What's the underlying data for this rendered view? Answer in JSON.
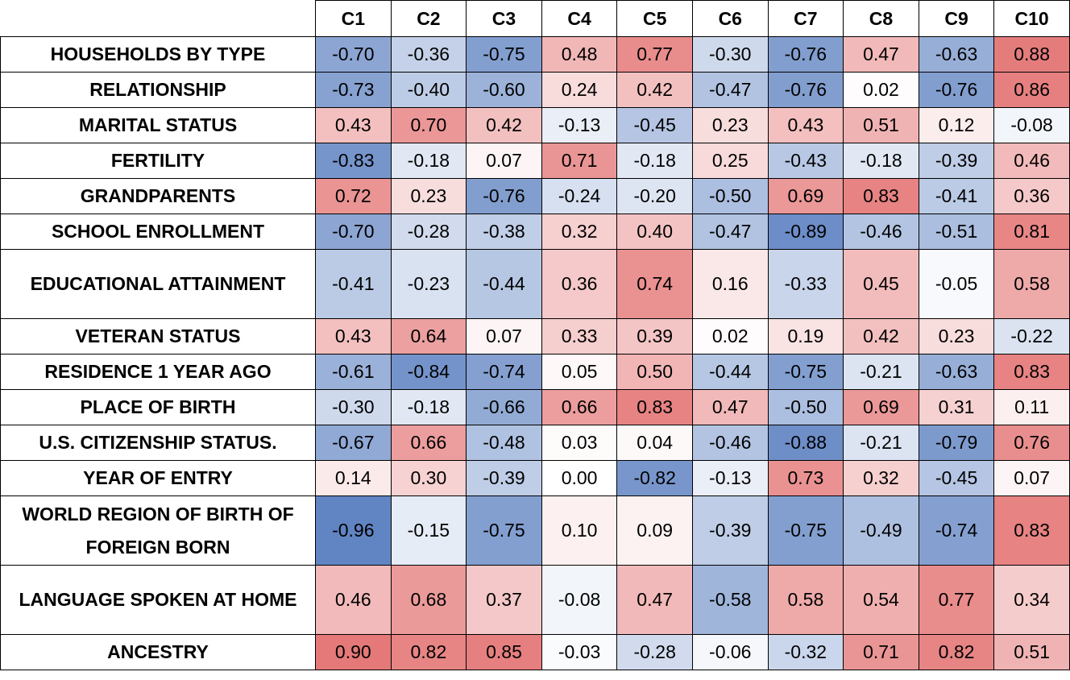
{
  "chart_data": {
    "type": "heatmap",
    "columns": [
      "C1",
      "C2",
      "C3",
      "C4",
      "C5",
      "C6",
      "C7",
      "C8",
      "C9",
      "C10"
    ],
    "rows": [
      "HOUSEHOLDS BY TYPE",
      "RELATIONSHIP",
      "MARITAL STATUS",
      "FERTILITY",
      "GRANDPARENTS",
      "SCHOOL ENROLLMENT",
      "EDUCATIONAL ATTAINMENT",
      "VETERAN STATUS",
      "RESIDENCE 1 YEAR AGO",
      "PLACE OF BIRTH",
      "U.S. CITIZENSHIP STATUS.",
      "YEAR OF ENTRY",
      "WORLD REGION OF BIRTH OF FOREIGN BORN",
      "LANGUAGE SPOKEN AT HOME",
      "ANCESTRY"
    ],
    "values": [
      [
        "-0.70",
        "-0.36",
        "-0.75",
        "0.48",
        "0.77",
        "-0.30",
        "-0.76",
        "0.47",
        "-0.63",
        "0.88"
      ],
      [
        "-0.73",
        "-0.40",
        "-0.60",
        "0.24",
        "0.42",
        "-0.47",
        "-0.76",
        "0.02",
        "-0.76",
        "0.86"
      ],
      [
        "0.43",
        "0.70",
        "0.42",
        "-0.13",
        "-0.45",
        "0.23",
        "0.43",
        "0.51",
        "0.12",
        "-0.08"
      ],
      [
        "-0.83",
        "-0.18",
        "0.07",
        "0.71",
        "-0.18",
        "0.25",
        "-0.43",
        "-0.18",
        "-0.39",
        "0.46"
      ],
      [
        "0.72",
        "0.23",
        "-0.76",
        "-0.24",
        "-0.20",
        "-0.50",
        "0.69",
        "0.83",
        "-0.41",
        "0.36"
      ],
      [
        "-0.70",
        "-0.28",
        "-0.38",
        "0.32",
        "0.40",
        "-0.47",
        "-0.89",
        "-0.46",
        "-0.51",
        "0.81"
      ],
      [
        "-0.41",
        "-0.23",
        "-0.44",
        "0.36",
        "0.74",
        "0.16",
        "-0.33",
        "0.45",
        "-0.05",
        "0.58"
      ],
      [
        "0.43",
        "0.64",
        "0.07",
        "0.33",
        "0.39",
        "0.02",
        "0.19",
        "0.42",
        "0.23",
        "-0.22"
      ],
      [
        "-0.61",
        "-0.84",
        "-0.74",
        "0.05",
        "0.50",
        "-0.44",
        "-0.75",
        "-0.21",
        "-0.63",
        "0.83"
      ],
      [
        "-0.30",
        "-0.18",
        "-0.66",
        "0.66",
        "0.83",
        "0.47",
        "-0.50",
        "0.69",
        "0.31",
        "0.11"
      ],
      [
        "-0.67",
        "0.66",
        "-0.48",
        "0.03",
        "0.04",
        "-0.46",
        "-0.88",
        "-0.21",
        "-0.79",
        "0.76"
      ],
      [
        "0.14",
        "0.30",
        "-0.39",
        "0.00",
        "-0.82",
        "-0.13",
        "0.73",
        "0.32",
        "-0.45",
        "0.07"
      ],
      [
        "-0.96",
        "-0.15",
        "-0.75",
        "0.10",
        "0.09",
        "-0.39",
        "-0.75",
        "-0.49",
        "-0.74",
        "0.83"
      ],
      [
        "0.46",
        "0.68",
        "0.37",
        "-0.08",
        "0.47",
        "-0.58",
        "0.58",
        "0.54",
        "0.77",
        "0.34"
      ],
      [
        "0.90",
        "0.82",
        "0.85",
        "-0.03",
        "-0.28",
        "-0.06",
        "-0.32",
        "0.71",
        "0.82",
        "0.51"
      ]
    ],
    "colors": {
      "negative": "#5a7fc0",
      "neutral": "#ffffff",
      "positive": "#e26a6a"
    }
  }
}
